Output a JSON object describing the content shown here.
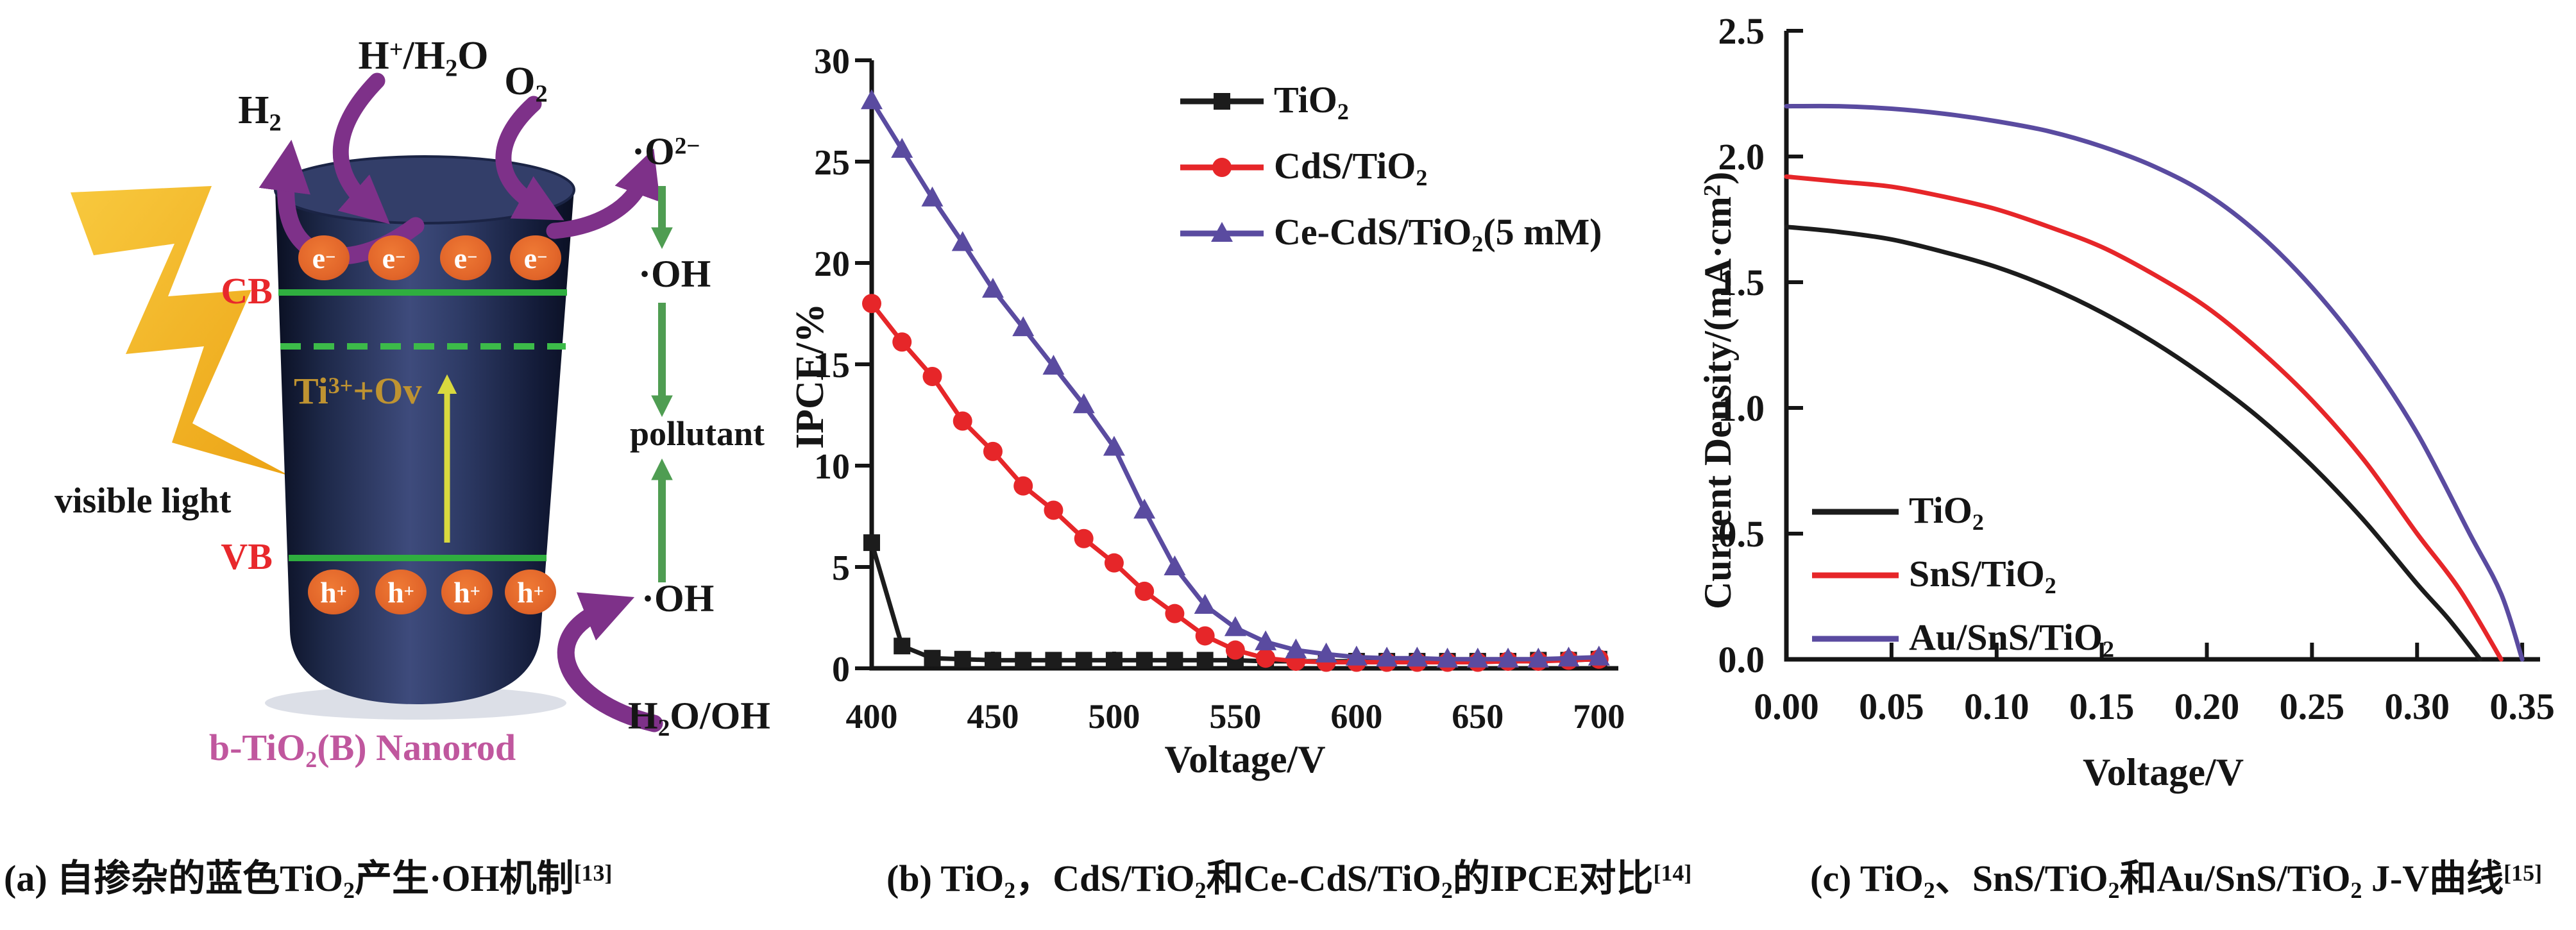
{
  "figure": {
    "background": "#ffffff",
    "panels": [
      "mechanism-diagram",
      "ipce-chart",
      "jv-chart"
    ]
  },
  "panel_a": {
    "labels": {
      "h2": [
        {
          "t": "H"
        },
        {
          "t": "2",
          "s": "sub"
        }
      ],
      "h_h2o": [
        {
          "t": "H"
        },
        {
          "t": "+",
          "s": "sup"
        },
        {
          "t": "/H"
        },
        {
          "t": "2",
          "s": "sub"
        },
        {
          "t": "O"
        }
      ],
      "o2": [
        {
          "t": "O"
        },
        {
          "t": "2",
          "s": "sub"
        }
      ],
      "o2_radical": [
        {
          "t": "·O"
        },
        {
          "t": "2−",
          "s": "sup"
        }
      ],
      "oh_upper": [
        {
          "t": "·OH"
        }
      ],
      "pollutant": [
        {
          "t": "pollutant"
        }
      ],
      "oh_lower": [
        {
          "t": "·OH"
        }
      ],
      "h2o_oh": [
        {
          "t": "H"
        },
        {
          "t": "2",
          "s": "sub"
        },
        {
          "t": "O/OH"
        }
      ],
      "visible_light": [
        {
          "t": "visible light"
        }
      ],
      "cb": [
        {
          "t": "CB"
        }
      ],
      "vb": [
        {
          "t": "VB"
        }
      ],
      "ti3_ov": [
        {
          "t": "Ti"
        },
        {
          "t": "3+",
          "s": "sup"
        },
        {
          "t": "+Ov"
        }
      ],
      "electron": [
        {
          "t": "e"
        },
        {
          "t": "−",
          "s": "sup"
        }
      ],
      "hole": [
        {
          "t": "h"
        },
        {
          "t": "+",
          "s": "sup"
        }
      ],
      "rod_caption": [
        {
          "t": "b-TiO"
        },
        {
          "t": "2",
          "s": "sub"
        },
        {
          "t": "(B) Nanorod"
        }
      ]
    },
    "colors": {
      "rod_center": "#3e4b7c",
      "rod_edge": "#0a0f22",
      "band_line_green": "#2fae3f",
      "dashed_green": "#3cbb49",
      "carrier_orange": "#e2662a",
      "arrow_purple": "#7e3189",
      "arrow_green": "#4f9d52",
      "arrow_yellow": "#d9d93e",
      "lightning_yellow": "#f2b72b",
      "gold_text": "#bf9331",
      "red_text": "#e8282c",
      "magenta_caption": "#c0579e"
    }
  },
  "chart_data": [
    {
      "type": "line",
      "title": "",
      "xlabel": "Voltage/V",
      "ylabel_rich": [
        {
          "t": "IPCE/%"
        }
      ],
      "xlim": [
        400,
        708
      ],
      "ylim": [
        0,
        30
      ],
      "xticks": [
        400,
        450,
        500,
        550,
        600,
        650,
        700
      ],
      "xtick_labels": [
        "400",
        "450",
        "500",
        "550",
        "600",
        "650",
        "700"
      ],
      "xminor": [
        425,
        475,
        525,
        575,
        625,
        675
      ],
      "yticks": [
        0,
        5,
        10,
        15,
        20,
        25,
        30
      ],
      "ytick_labels": [
        "0",
        "5",
        "10",
        "15",
        "20",
        "25",
        "30"
      ],
      "grid": false,
      "legend_position": "top-right",
      "x": [
        400,
        412.5,
        425,
        437.5,
        450,
        462.5,
        475,
        487.5,
        500,
        512.5,
        525,
        537.5,
        550,
        562.5,
        575,
        587.5,
        600,
        612.5,
        625,
        637.5,
        650,
        662.5,
        675,
        687.5,
        700
      ],
      "series": [
        {
          "key": "tio2",
          "name_rich": [
            {
              "t": "TiO"
            },
            {
              "t": "2",
              "s": "sub"
            }
          ],
          "color": "#1c1c1c",
          "marker": "square",
          "values": [
            6.2,
            1.1,
            0.5,
            0.45,
            0.4,
            0.4,
            0.4,
            0.4,
            0.4,
            0.4,
            0.4,
            0.4,
            0.4,
            0.35,
            0.35,
            0.35,
            0.35,
            0.35,
            0.35,
            0.35,
            0.35,
            0.35,
            0.4,
            0.4,
            0.45
          ]
        },
        {
          "key": "cds-tio2",
          "name_rich": [
            {
              "t": "CdS/TiO"
            },
            {
              "t": "2",
              "s": "sub"
            }
          ],
          "color": "#e62629",
          "marker": "circle",
          "values": [
            18,
            16.1,
            14.4,
            12.2,
            10.7,
            9,
            7.8,
            6.4,
            5.2,
            3.8,
            2.7,
            1.6,
            0.9,
            0.5,
            0.35,
            0.3,
            0.3,
            0.3,
            0.3,
            0.3,
            0.3,
            0.35,
            0.35,
            0.4,
            0.45
          ]
        },
        {
          "key": "ce-cds-tio2",
          "name_rich": [
            {
              "t": "Ce-CdS/TiO"
            },
            {
              "t": "2",
              "s": "sub"
            },
            {
              "t": "(5 mM)"
            }
          ],
          "color": "#5a4ba0",
          "marker": "triangle",
          "values": [
            28,
            25.6,
            23.2,
            21,
            18.7,
            16.8,
            14.9,
            13,
            10.9,
            7.8,
            5,
            3.1,
            2,
            1.3,
            0.9,
            0.7,
            0.55,
            0.5,
            0.5,
            0.45,
            0.45,
            0.45,
            0.45,
            0.5,
            0.55
          ]
        }
      ]
    },
    {
      "type": "line",
      "title": "",
      "xlabel": "Voltage/V",
      "ylabel_rich": [
        {
          "t": "Current Density/(mA·cm"
        },
        {
          "t": "2",
          "s": "sup"
        },
        {
          "t": ")"
        }
      ],
      "xlim": [
        0,
        0.3585
      ],
      "ylim": [
        0,
        2.5
      ],
      "xticks": [
        0,
        0.05,
        0.1,
        0.15,
        0.2,
        0.25,
        0.3,
        0.35
      ],
      "xtick_labels": [
        "0.00",
        "0.05",
        "0.10",
        "0.15",
        "0.20",
        "0.25",
        "0.30",
        "0.35"
      ],
      "yticks": [
        0,
        0.5,
        1,
        1.5,
        2,
        2.5
      ],
      "ytick_labels": [
        "0.0",
        "0.5",
        "1.0",
        "1.5",
        "2.0",
        "2.5"
      ],
      "grid": false,
      "legend_position": "inside-lower-left",
      "series": [
        {
          "key": "tio2",
          "name_rich": [
            {
              "t": "TiO"
            },
            {
              "t": "2",
              "s": "sub"
            }
          ],
          "color": "#1c1c1c",
          "marker": "none",
          "smooth": true,
          "x": [
            0,
            0.025,
            0.05,
            0.075,
            0.1,
            0.125,
            0.15,
            0.175,
            0.2,
            0.225,
            0.25,
            0.275,
            0.3,
            0.315,
            0.33
          ],
          "values": [
            1.72,
            1.7,
            1.67,
            1.62,
            1.56,
            1.48,
            1.38,
            1.26,
            1.12,
            0.96,
            0.77,
            0.55,
            0.3,
            0.16,
            0
          ]
        },
        {
          "key": "sns-tio2",
          "name_rich": [
            {
              "t": "SnS/TiO"
            },
            {
              "t": "2",
              "s": "sub"
            }
          ],
          "color": "#e62629",
          "marker": "none",
          "smooth": true,
          "x": [
            0,
            0.025,
            0.05,
            0.075,
            0.1,
            0.125,
            0.15,
            0.175,
            0.2,
            0.225,
            0.25,
            0.275,
            0.3,
            0.32,
            0.34
          ],
          "values": [
            1.92,
            1.9,
            1.88,
            1.84,
            1.79,
            1.72,
            1.64,
            1.53,
            1.4,
            1.23,
            1.03,
            0.79,
            0.5,
            0.28,
            0
          ]
        },
        {
          "key": "au-sns-tio2",
          "name_rich": [
            {
              "t": "Au/SnS/TiO"
            },
            {
              "t": "2",
              "s": "sub"
            }
          ],
          "color": "#5a4ba0",
          "marker": "none",
          "smooth": true,
          "x": [
            0,
            0.025,
            0.05,
            0.075,
            0.1,
            0.125,
            0.15,
            0.175,
            0.2,
            0.225,
            0.25,
            0.275,
            0.3,
            0.325,
            0.34,
            0.35
          ],
          "values": [
            2.2,
            2.2,
            2.19,
            2.17,
            2.14,
            2.1,
            2.04,
            1.96,
            1.85,
            1.69,
            1.48,
            1.22,
            0.9,
            0.5,
            0.26,
            0
          ]
        }
      ]
    }
  ],
  "captions": [
    [
      {
        "t": "(a) 自掺杂的蓝色TiO"
      },
      {
        "t": "2",
        "s": "sub"
      },
      {
        "t": "产生·OH机制"
      },
      {
        "t": "[13]",
        "s": "sup"
      }
    ],
    [
      {
        "t": "(b) TiO"
      },
      {
        "t": "2",
        "s": "sub"
      },
      {
        "t": "，CdS/TiO"
      },
      {
        "t": "2",
        "s": "sub"
      },
      {
        "t": "和Ce-CdS/TiO"
      },
      {
        "t": "2",
        "s": "sub"
      },
      {
        "t": "的IPCE对比"
      },
      {
        "t": "[14]",
        "s": "sup"
      }
    ],
    [
      {
        "t": "(c) TiO"
      },
      {
        "t": "2",
        "s": "sub"
      },
      {
        "t": "、SnS/TiO"
      },
      {
        "t": "2",
        "s": "sub"
      },
      {
        "t": "和Au/SnS/TiO"
      },
      {
        "t": "2",
        "s": "sub"
      },
      {
        "t": " J-V曲线"
      },
      {
        "t": "[15]",
        "s": "sup"
      }
    ]
  ]
}
